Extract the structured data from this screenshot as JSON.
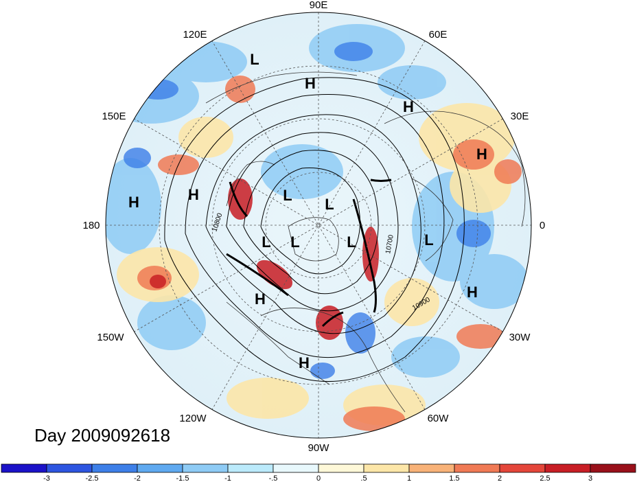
{
  "map": {
    "projection": "north-polar-stereographic",
    "longitude_labels": [
      "90E",
      "60E",
      "30E",
      "0",
      "30W",
      "60W",
      "90W",
      "120W",
      "150W",
      "180",
      "150E",
      "120E"
    ],
    "pressure_centers": [
      {
        "type": "L",
        "region": "central-siberia"
      },
      {
        "type": "H",
        "region": "eastern-siberia"
      },
      {
        "type": "H",
        "region": "central-asia"
      },
      {
        "type": "H",
        "region": "middle-east"
      },
      {
        "type": "H",
        "region": "north-pacific"
      },
      {
        "type": "H",
        "region": "bering-sea"
      },
      {
        "type": "L",
        "region": "arctic-east"
      },
      {
        "type": "L",
        "region": "arctic-pole"
      },
      {
        "type": "L",
        "region": "alaska"
      },
      {
        "type": "L",
        "region": "beaufort"
      },
      {
        "type": "L",
        "region": "canadian-archipelago"
      },
      {
        "type": "L",
        "region": "scandinavia"
      },
      {
        "type": "H",
        "region": "east-pacific"
      },
      {
        "type": "H",
        "region": "north-atlantic"
      },
      {
        "type": "H",
        "region": "gulf-of-mexico"
      }
    ],
    "contour_labels": [
      "10800",
      "10700",
      "10900"
    ],
    "colors": {
      "land_outline": "#333333",
      "contour": "#000000",
      "gridline": "#555555"
    }
  },
  "title": {
    "day_label": "Day 2009092618"
  },
  "colorbar": {
    "tick_labels": [
      "-3",
      "-2.5",
      "-2",
      "-1.5",
      "-1",
      "-.5",
      "0",
      ".5",
      "1",
      "1.5",
      "2",
      "2.5",
      "3"
    ],
    "colors": [
      "#1b12c8",
      "#2d55e0",
      "#3d7fe8",
      "#5fa9f0",
      "#8ecbf5",
      "#bbeafb",
      "#e8f8fc",
      "#fef8d8",
      "#fce6a8",
      "#f8b278",
      "#f07a55",
      "#e4463a",
      "#c81e25",
      "#99101a"
    ]
  }
}
